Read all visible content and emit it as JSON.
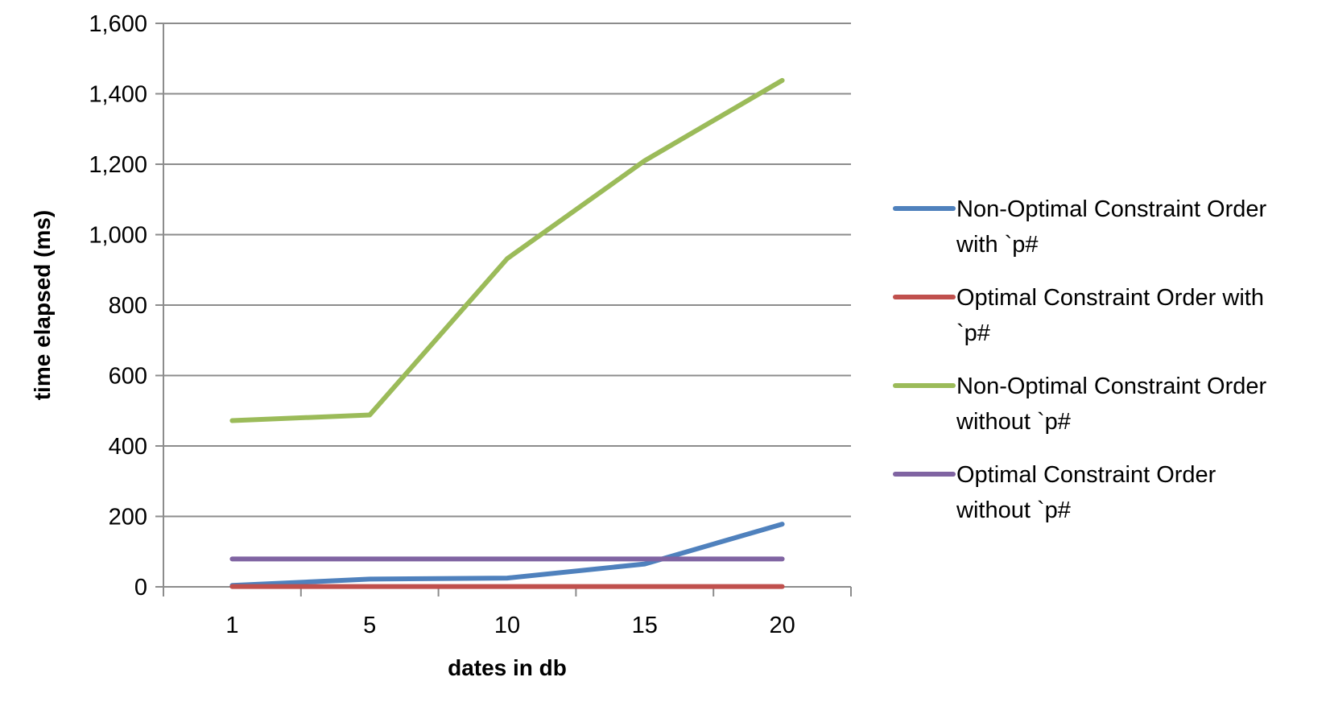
{
  "chart_data": {
    "type": "line",
    "title": "",
    "xlabel": "dates in db",
    "ylabel": "time elapsed (ms)",
    "categories": [
      "1",
      "5",
      "10",
      "15",
      "20"
    ],
    "ylim": [
      0,
      1600
    ],
    "yticks": [
      0,
      200,
      400,
      600,
      800,
      1000,
      1200,
      1400,
      1600
    ],
    "ytick_labels": [
      "0",
      "200",
      "400",
      "600",
      "800",
      "1,000",
      "1,200",
      "1,400",
      "1,600"
    ],
    "grid": true,
    "legend_position": "right",
    "series": [
      {
        "name": "Non-Optimal Constraint Order with `p#",
        "legend_lines": [
          "Non-Optimal Constraint Order",
          "with `p#"
        ],
        "color": "#4F81BD",
        "values": [
          4,
          22,
          25,
          65,
          178
        ]
      },
      {
        "name": "Optimal Constraint Order with `p#",
        "legend_lines": [
          "Optimal Constraint Order with",
          "`p#"
        ],
        "color": "#C0504D",
        "values": [
          1,
          1,
          1,
          1,
          1
        ]
      },
      {
        "name": "Non-Optimal Constraint Order without `p#",
        "legend_lines": [
          "Non-Optimal Constraint Order",
          "without `p#"
        ],
        "color": "#9BBB59",
        "values": [
          472,
          488,
          932,
          1210,
          1438
        ]
      },
      {
        "name": "Optimal Constraint Order without `p#",
        "legend_lines": [
          "Optimal Constraint Order",
          "without `p#"
        ],
        "color": "#8064A2",
        "values": [
          79,
          79,
          79,
          79,
          79
        ]
      }
    ]
  }
}
